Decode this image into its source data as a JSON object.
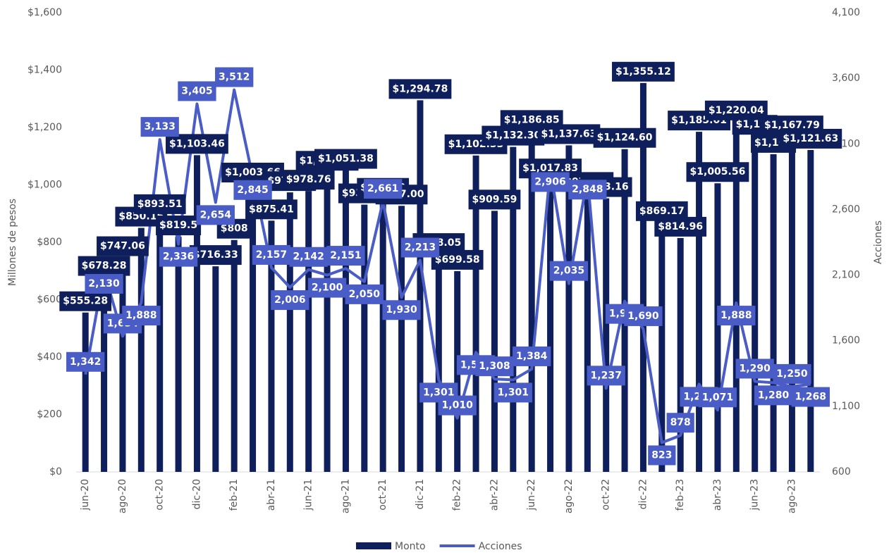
{
  "chart_data": {
    "type": "bar",
    "y_label": "Millones de pesos",
    "y2_label": "Acciones",
    "categories": [
      "jun-20",
      null,
      "ago-20",
      null,
      "oct-20",
      null,
      "dic-20",
      null,
      "feb-21",
      null,
      "abr-21",
      null,
      "jun-21",
      null,
      "ago-21",
      null,
      "oct-21",
      null,
      "dic-21",
      null,
      "feb-22",
      null,
      "abr-22",
      null,
      "jun-22",
      null,
      "ago-22",
      null,
      "oct-22",
      null,
      "dic-22",
      null,
      "feb-23",
      null,
      "abr-23",
      null,
      "jun-23",
      null,
      "ago-23",
      null
    ],
    "series": [
      {
        "name": "Monto",
        "type": "bar",
        "color": "#0f1f5c",
        "values": [
          555.28,
          678.28,
          747.06,
          850.16,
          893.51,
          819.5,
          1103.46,
          716.33,
          808,
          1003.66,
          875.41,
          973.89,
          978.76,
          1044.71,
          1051.38,
          931.18,
          950.4,
          927.0,
          1294.78,
          758.05,
          699.58,
          1102.33,
          909.59,
          1132.3,
          1186.85,
          1017.83,
          1137.63,
          970.84,
          953.16,
          1124.6,
          1355.12,
          869.17,
          814.96,
          1185.01,
          1005.56,
          1220.04,
          1170,
          1107,
          1167.79,
          1121.63
        ],
        "value_labels": [
          "$555.28",
          "$678.28",
          "$747.06",
          "$850.16",
          "$893.51",
          "$819.5",
          "$1,103.46",
          "$716.33",
          "$808",
          "$1,003.66",
          "$875.41",
          "$973.89",
          "$978.76",
          "$1,044.71",
          "$1,051.38",
          "$931.18",
          "$950.40",
          "$927.00",
          "$1,294.78",
          "$758.05",
          "$699.58",
          "$1,102.33",
          "$909.59",
          "$1,132.30",
          "$1,186.85",
          "$1,017.83",
          "$1,137.63",
          "$970.84",
          "$953.16",
          "$1,124.60",
          "$1,355.12",
          "$869.17",
          "$814.96",
          "$1,185.01",
          "$1,005.56",
          "$1,220.04",
          "$1,170",
          "$1,107",
          "$1,167.79",
          "$1,121.63"
        ]
      },
      {
        "name": "Acciones",
        "type": "line",
        "axis": "y2",
        "color": "#4a5cc6",
        "values": [
          1342,
          2130,
          1634,
          1888,
          3133,
          2336,
          3405,
          2654,
          3512,
          2845,
          2157,
          2006,
          2142,
          2100,
          2151,
          2050,
          2661,
          1930,
          2213,
          1301,
          1010,
          1511,
          1308,
          1301,
          1384,
          2906,
          2035,
          2848,
          1237,
          1901,
          1690,
          823,
          878,
          1269,
          1071,
          1888,
          1290,
          1280,
          1250,
          1268
        ],
        "value_labels": [
          "1,342",
          "2,130",
          "1,634",
          "1,888",
          "3,133",
          "2,336",
          "3,405",
          "2,654",
          "3,512",
          "2,845",
          "2,157",
          "2,006",
          "2,142",
          "2,100",
          "2,151",
          "2,050",
          "2,661",
          "1,930",
          "2,213",
          "1,301",
          "1,010",
          "1,511",
          "1,308",
          "1,301",
          "1,384",
          "2,906",
          "2,035",
          "2,848",
          "1,237",
          "1,901",
          "1,690",
          "823",
          "878",
          "1,269",
          "1,071",
          "1,888",
          "1,290",
          "1,280",
          "1,250",
          "1,268"
        ]
      }
    ],
    "ylim": [
      0,
      1600
    ],
    "yticks": [
      {
        "value": 0,
        "label": "$0"
      },
      {
        "value": 200,
        "label": "$200"
      },
      {
        "value": 400,
        "label": "$400"
      },
      {
        "value": 600,
        "label": "$600"
      },
      {
        "value": 800,
        "label": "$800"
      },
      {
        "value": 1000,
        "label": "$1,000"
      },
      {
        "value": 1200,
        "label": "$1,200"
      },
      {
        "value": 1400,
        "label": "$1,400"
      },
      {
        "value": 1600,
        "label": "$1,600"
      }
    ],
    "y2lim": [
      600,
      4100
    ],
    "y2ticks": [
      600,
      {
        "value": 1100,
        "label": "1,100"
      },
      {
        "value": 1600,
        "label": "1,600"
      },
      {
        "value": 2100,
        "label": "2,100"
      },
      {
        "value": 2600,
        "label": "2,600"
      },
      {
        "value": 3100,
        "label": "3,100"
      },
      {
        "value": 3600,
        "label": "3,600"
      },
      {
        "value": 4100,
        "label": "4,100"
      }
    ],
    "legend": "bottom"
  }
}
